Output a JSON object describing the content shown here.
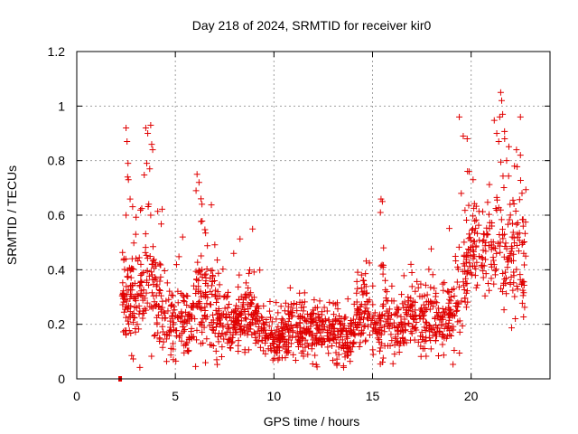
{
  "chart_data": {
    "type": "scatter",
    "title": "Day 218 of 2024, SRMTID for receiver kir0",
    "xlabel": "GPS time / hours",
    "ylabel": "SRMTID / TECUs",
    "xlim": [
      0,
      24
    ],
    "ylim": [
      0,
      1.2
    ],
    "grid": true,
    "color": "#e00000",
    "marker": "plus",
    "xticks": [
      0,
      5,
      10,
      15,
      20
    ],
    "xtick_labels": [
      "0",
      "5",
      "10",
      "15",
      "20"
    ],
    "yticks": [
      0,
      0.2,
      0.4,
      0.6,
      0.8,
      1.0,
      1.2
    ],
    "ytick_labels": [
      "0",
      "0.2",
      "0.4",
      "0.6",
      "0.8",
      "1",
      "1.2"
    ],
    "outlier_points": [
      {
        "x": 2.2,
        "y": 0.0
      },
      {
        "x": 2.5,
        "y": 0.92
      },
      {
        "x": 2.55,
        "y": 0.87
      },
      {
        "x": 2.6,
        "y": 0.79
      },
      {
        "x": 2.58,
        "y": 0.74
      },
      {
        "x": 2.62,
        "y": 0.73
      },
      {
        "x": 2.5,
        "y": 0.6
      },
      {
        "x": 3.5,
        "y": 0.92
      },
      {
        "x": 3.6,
        "y": 0.9
      },
      {
        "x": 3.75,
        "y": 0.93
      },
      {
        "x": 3.8,
        "y": 0.86
      },
      {
        "x": 3.85,
        "y": 0.84
      },
      {
        "x": 3.55,
        "y": 0.79
      },
      {
        "x": 3.7,
        "y": 0.77
      },
      {
        "x": 3.65,
        "y": 0.64
      },
      {
        "x": 3.75,
        "y": 0.6
      },
      {
        "x": 6.1,
        "y": 0.75
      },
      {
        "x": 6.2,
        "y": 0.72
      },
      {
        "x": 6.05,
        "y": 0.69
      },
      {
        "x": 6.3,
        "y": 0.66
      },
      {
        "x": 6.35,
        "y": 0.64
      },
      {
        "x": 15.5,
        "y": 0.65
      },
      {
        "x": 15.4,
        "y": 0.61
      },
      {
        "x": 19.4,
        "y": 0.96
      },
      {
        "x": 19.6,
        "y": 0.89
      },
      {
        "x": 19.8,
        "y": 0.88
      },
      {
        "x": 19.9,
        "y": 0.76
      },
      {
        "x": 20.1,
        "y": 0.73
      },
      {
        "x": 19.5,
        "y": 0.68
      },
      {
        "x": 21.5,
        "y": 1.05
      },
      {
        "x": 21.55,
        "y": 1.02
      },
      {
        "x": 21.6,
        "y": 0.97
      },
      {
        "x": 21.45,
        "y": 0.96
      },
      {
        "x": 22.5,
        "y": 0.96
      },
      {
        "x": 21.3,
        "y": 0.9
      },
      {
        "x": 21.4,
        "y": 0.87
      },
      {
        "x": 21.7,
        "y": 0.88
      },
      {
        "x": 22.3,
        "y": 0.84
      },
      {
        "x": 22.5,
        "y": 0.82
      },
      {
        "x": 21.8,
        "y": 0.8
      },
      {
        "x": 22.2,
        "y": 0.78
      }
    ],
    "trend": [
      {
        "x": 2.3,
        "mean": 0.3,
        "spread": 0.13
      },
      {
        "x": 3.0,
        "mean": 0.28,
        "spread": 0.12
      },
      {
        "x": 3.6,
        "mean": 0.34,
        "spread": 0.16
      },
      {
        "x": 4.3,
        "mean": 0.24,
        "spread": 0.11
      },
      {
        "x": 5.0,
        "mean": 0.19,
        "spread": 0.08
      },
      {
        "x": 5.6,
        "mean": 0.21,
        "spread": 0.1
      },
      {
        "x": 6.2,
        "mean": 0.3,
        "spread": 0.13
      },
      {
        "x": 7.0,
        "mean": 0.24,
        "spread": 0.1
      },
      {
        "x": 8.0,
        "mean": 0.2,
        "spread": 0.08
      },
      {
        "x": 8.8,
        "mean": 0.24,
        "spread": 0.09
      },
      {
        "x": 9.5,
        "mean": 0.15,
        "spread": 0.05
      },
      {
        "x": 10.2,
        "mean": 0.14,
        "spread": 0.05
      },
      {
        "x": 11.0,
        "mean": 0.18,
        "spread": 0.07
      },
      {
        "x": 12.0,
        "mean": 0.18,
        "spread": 0.07
      },
      {
        "x": 13.0,
        "mean": 0.17,
        "spread": 0.07
      },
      {
        "x": 13.8,
        "mean": 0.13,
        "spread": 0.06
      },
      {
        "x": 14.5,
        "mean": 0.26,
        "spread": 0.1
      },
      {
        "x": 15.2,
        "mean": 0.17,
        "spread": 0.07
      },
      {
        "x": 15.6,
        "mean": 0.24,
        "spread": 0.1
      },
      {
        "x": 16.3,
        "mean": 0.17,
        "spread": 0.07
      },
      {
        "x": 17.0,
        "mean": 0.22,
        "spread": 0.08
      },
      {
        "x": 18.0,
        "mean": 0.2,
        "spread": 0.08
      },
      {
        "x": 18.8,
        "mean": 0.21,
        "spread": 0.08
      },
      {
        "x": 19.4,
        "mean": 0.24,
        "spread": 0.1
      },
      {
        "x": 19.8,
        "mean": 0.42,
        "spread": 0.13
      },
      {
        "x": 20.4,
        "mean": 0.5,
        "spread": 0.11
      },
      {
        "x": 21.0,
        "mean": 0.47,
        "spread": 0.12
      },
      {
        "x": 21.5,
        "mean": 0.5,
        "spread": 0.15
      },
      {
        "x": 22.0,
        "mean": 0.45,
        "spread": 0.16
      },
      {
        "x": 22.6,
        "mean": 0.43,
        "spread": 0.17
      }
    ],
    "scatter_density": {
      "x_start": 2.3,
      "x_end": 22.8,
      "count": 1700,
      "seed": 218
    }
  }
}
